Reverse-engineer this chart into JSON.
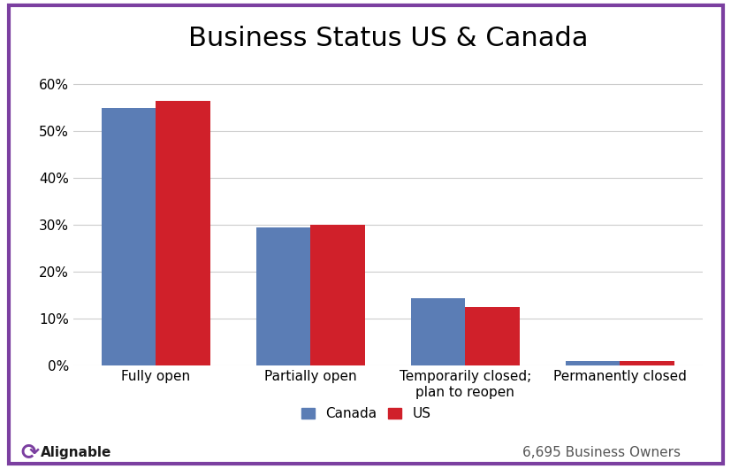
{
  "title": "Business Status US & Canada",
  "categories": [
    "Fully open",
    "Partially open",
    "Temporarily closed;\nplan to reopen",
    "Permanently closed"
  ],
  "canada_values": [
    0.55,
    0.295,
    0.145,
    0.01
  ],
  "us_values": [
    0.565,
    0.3,
    0.125,
    0.01
  ],
  "canada_color": "#5b7db5",
  "us_color": "#d0202a",
  "ylim": [
    0,
    0.65
  ],
  "yticks": [
    0.0,
    0.1,
    0.2,
    0.3,
    0.4,
    0.5,
    0.6
  ],
  "ytick_labels": [
    "0%",
    "10%",
    "20%",
    "30%",
    "40%",
    "50%",
    "60%"
  ],
  "legend_labels": [
    "Canada",
    "US"
  ],
  "footer_left": "Alignable",
  "footer_right": "6,695 Business Owners",
  "background_color": "#ffffff",
  "border_color": "#7b3fa0",
  "title_fontsize": 22,
  "tick_fontsize": 11,
  "legend_fontsize": 11,
  "footer_fontsize": 11,
  "bar_width": 0.35,
  "grid_color": "#cccccc"
}
